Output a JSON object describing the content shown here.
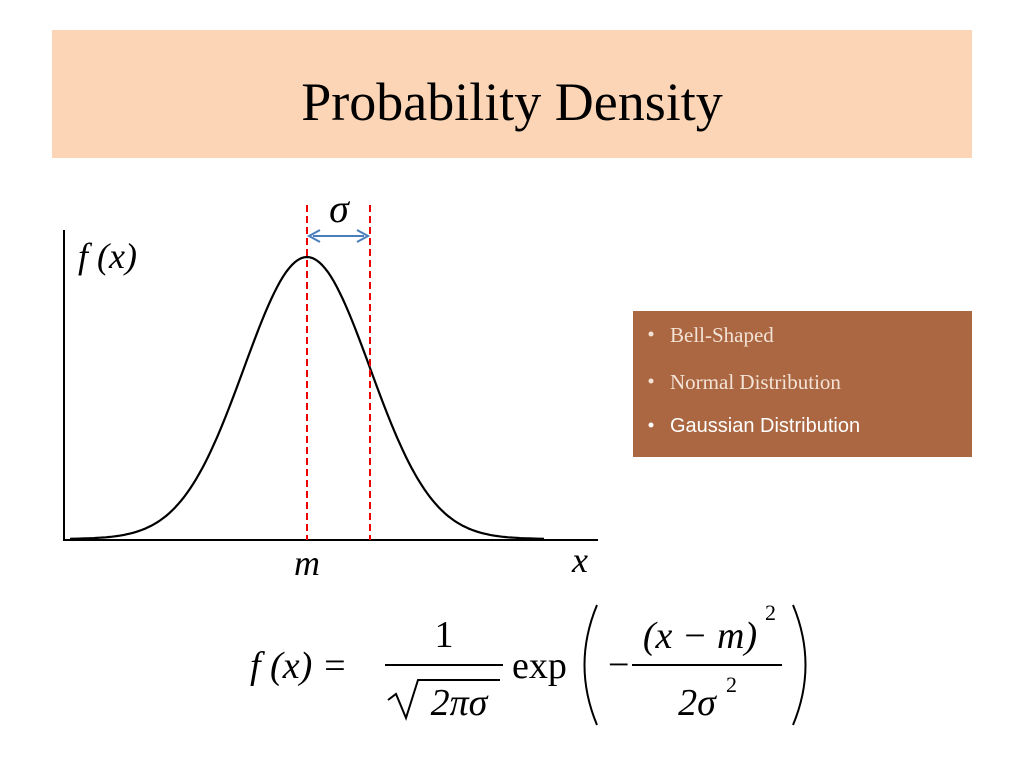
{
  "title": "Probability Density",
  "graph": {
    "sigma_label": "σ",
    "y_label": "f (x)",
    "mean_label": "m",
    "x_label": "x"
  },
  "bullets": [
    "Bell-Shaped",
    "Normal Distribution",
    "Gaussian Distribution"
  ],
  "formula": {
    "lhs": "f (x) =",
    "numerator": "1",
    "denominator": "2πσ",
    "exp": "exp",
    "minus": "−",
    "inner_numerator": "(x − m)",
    "inner_numerator_power": "2",
    "inner_denominator": "2σ",
    "inner_denominator_power": "2"
  }
}
